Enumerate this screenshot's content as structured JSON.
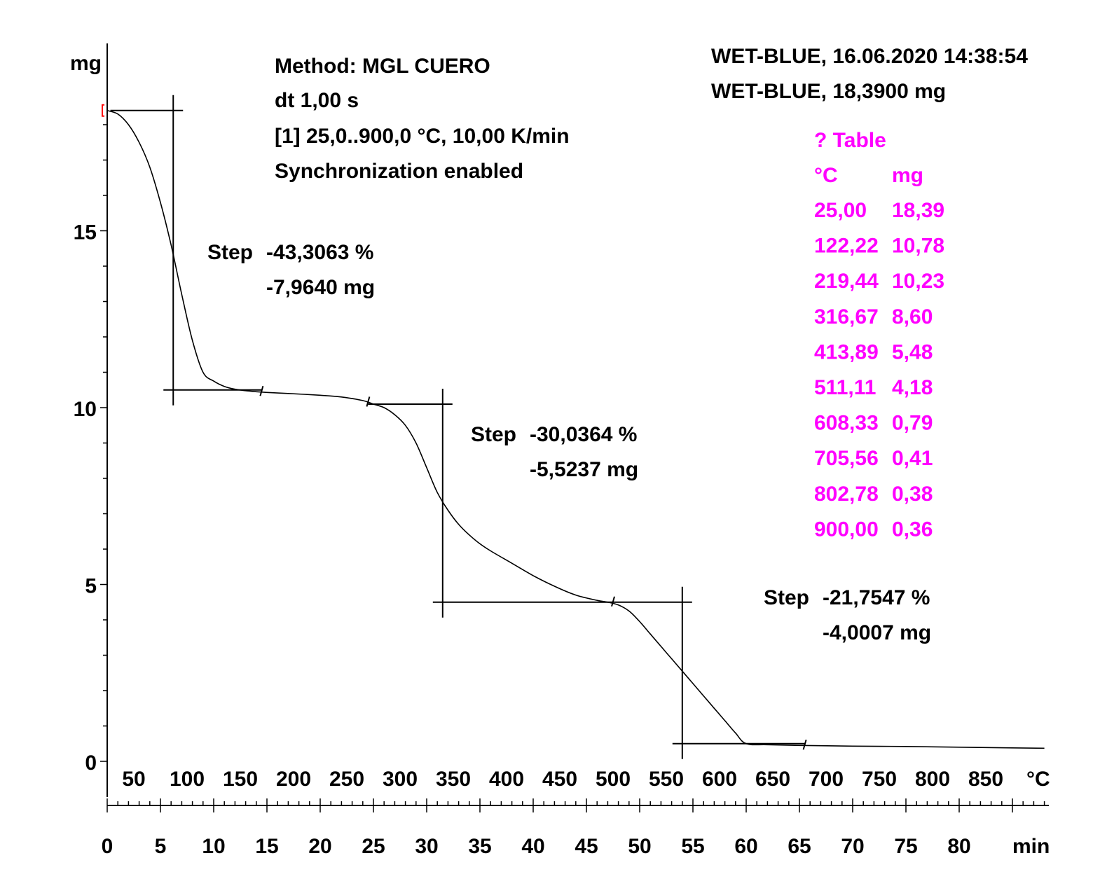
{
  "chart_data": {
    "type": "line",
    "y_unit": "mg",
    "x_unit_temp": "°C",
    "x_unit_time": "min",
    "ylim": [
      0,
      18.5
    ],
    "y_ticks": [
      0,
      5,
      10,
      15
    ],
    "temp_ticks": [
      50,
      100,
      150,
      200,
      250,
      300,
      350,
      400,
      450,
      500,
      550,
      600,
      650,
      700,
      750,
      800,
      850
    ],
    "time_ticks": [
      0,
      5,
      10,
      15,
      20,
      25,
      30,
      35,
      40,
      45,
      50,
      55,
      60,
      65,
      70,
      75,
      80
    ],
    "header": {
      "method": "Method: MGL CUERO",
      "dt": "dt 1,00 s",
      "segment": "[1] 25,0..900,0 °C, 10,00 K/min",
      "sync": "Synchronization enabled"
    },
    "sample": {
      "line1": "WET-BLUE, 16.06.2020 14:38:54",
      "line2": "WET-BLUE, 18,3900 mg"
    },
    "table": {
      "title": "? Table",
      "col_temp": "°C",
      "col_mass": "mg",
      "rows": [
        [
          "25,00",
          "18,39"
        ],
        [
          "122,22",
          "10,78"
        ],
        [
          "219,44",
          "10,23"
        ],
        [
          "316,67",
          "8,60"
        ],
        [
          "413,89",
          "5,48"
        ],
        [
          "511,11",
          "4,18"
        ],
        [
          "608,33",
          "0,79"
        ],
        [
          "705,56",
          "0,41"
        ],
        [
          "802,78",
          "0,38"
        ],
        [
          "900,00",
          "0,36"
        ]
      ]
    },
    "steps": [
      {
        "label": "Step",
        "percent": "-43,3063 %",
        "mass": "-7,9640 mg",
        "inflection_t": 6.2,
        "from_t": 0.3,
        "to_t": 14.5,
        "level_high": 18.4,
        "level_low": 10.5
      },
      {
        "label": "Step",
        "percent": "-30,0364 %",
        "mass": "-5,5237 mg",
        "inflection_t": 31.5,
        "from_t": 24.5,
        "to_t": 47.5,
        "level_high": 10.1,
        "level_low": 4.5
      },
      {
        "label": "Step",
        "percent": "-21,7547 %",
        "mass": "-4,0007 mg",
        "inflection_t": 54.0,
        "from_t": 47.5,
        "to_t": 65.5,
        "level_high": 4.5,
        "level_low": 0.5
      }
    ],
    "series": [
      {
        "x_time_min": [
          0,
          1,
          2,
          3,
          4,
          5,
          6,
          7,
          8,
          9,
          10,
          11,
          12,
          13,
          14,
          15,
          17,
          20,
          22,
          24,
          25,
          26,
          27,
          28,
          29,
          30,
          31,
          32,
          33,
          34,
          35,
          36,
          38,
          40,
          42,
          44,
          46,
          47,
          48,
          49,
          50,
          51,
          52,
          53,
          54,
          55,
          56,
          57,
          58,
          59,
          60,
          62,
          65,
          70,
          75,
          80,
          85,
          88
        ],
        "y_mg": [
          18.4,
          18.3,
          18.0,
          17.5,
          16.8,
          15.8,
          14.6,
          13.2,
          11.9,
          11.0,
          10.75,
          10.6,
          10.52,
          10.48,
          10.45,
          10.43,
          10.4,
          10.35,
          10.3,
          10.2,
          10.1,
          10.0,
          9.8,
          9.5,
          9.0,
          8.3,
          7.6,
          7.1,
          6.7,
          6.4,
          6.15,
          5.95,
          5.6,
          5.25,
          4.95,
          4.7,
          4.55,
          4.5,
          4.42,
          4.25,
          3.95,
          3.6,
          3.25,
          2.9,
          2.55,
          2.2,
          1.85,
          1.5,
          1.15,
          0.8,
          0.5,
          0.47,
          0.45,
          0.43,
          0.42,
          0.4,
          0.38,
          0.37
        ]
      }
    ]
  }
}
